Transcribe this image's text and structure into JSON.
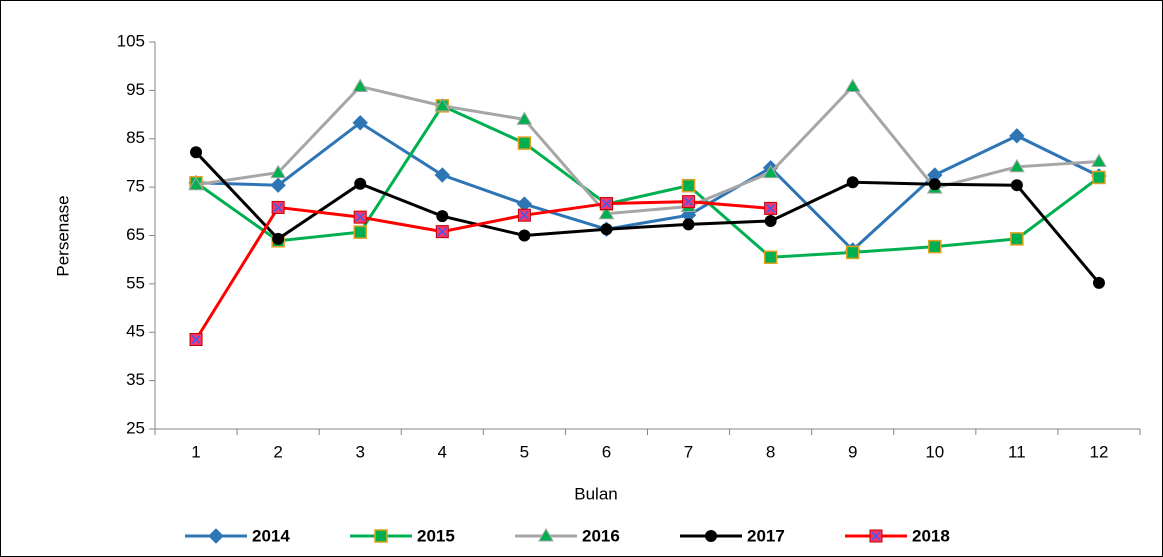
{
  "chart_data": {
    "type": "line",
    "x_label": "Bulan",
    "y_label": "Persenase",
    "categories": [
      "1",
      "2",
      "3",
      "4",
      "5",
      "6",
      "7",
      "8",
      "9",
      "10",
      "11",
      "12"
    ],
    "ylim": [
      25,
      105
    ],
    "yticks": [
      25,
      35,
      45,
      55,
      65,
      75,
      85,
      95,
      105
    ],
    "grid": false,
    "legend": "bottom",
    "series": [
      {
        "name": "2014",
        "color": "#2e75b6",
        "marker": "diamond",
        "marker_color": "#2e75b6",
        "values": [
          75.9,
          75.4,
          88.3,
          77.5,
          71.5,
          66.3,
          69.2,
          79,
          62,
          77.5,
          85.6,
          77.3
        ]
      },
      {
        "name": "2015",
        "color": "#00b050",
        "marker": "square",
        "marker_color": "#00b050",
        "values": [
          75.9,
          63.9,
          65.7,
          91.8,
          84.1,
          71.5,
          75.3,
          60.5,
          61.5,
          62.7,
          64.3,
          77
        ]
      },
      {
        "name": "2016",
        "color": "#a6a6a6",
        "marker": "triangle",
        "marker_color": "#00b050",
        "values": [
          75.5,
          78,
          95.8,
          91.8,
          89,
          69.5,
          71,
          78,
          95.8,
          74.8,
          79.2,
          80.3
        ]
      },
      {
        "name": "2017",
        "color": "#000000",
        "marker": "circle",
        "marker_color": "#000000",
        "values": [
          82.2,
          64.3,
          75.7,
          69,
          65,
          66.3,
          67.3,
          68,
          76,
          75.6,
          75.4,
          55.2
        ]
      },
      {
        "name": "2018",
        "color": "#ff0000",
        "marker": "xsquare",
        "marker_color": "#ff3366",
        "values": [
          43.5,
          70.8,
          68.8,
          65.8,
          69.2,
          71.6,
          72,
          70.6,
          null,
          null,
          null,
          null
        ]
      }
    ]
  }
}
